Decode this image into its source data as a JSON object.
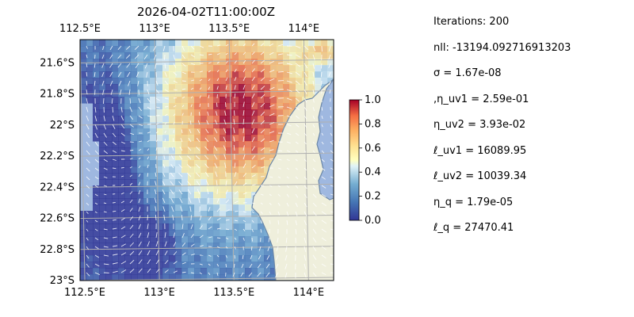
{
  "chart_data": {
    "type": "heatmap",
    "title": "2026-04-02T11:00:00Z",
    "x_ticks": [
      "112.5°E",
      "113°E",
      "113.5°E",
      "114°E"
    ],
    "y_ticks": [
      "21.6°S",
      "21.8°S",
      "22°S",
      "22.2°S",
      "22.4°S",
      "22.6°S",
      "22.8°S",
      "23°S"
    ],
    "lon_range": [
      112.5,
      114.2
    ],
    "lat_range": [
      -23.0,
      -21.45
    ],
    "grid": true,
    "overlay": "velocity quiver arrows (white)",
    "colorbar": {
      "ticks": [
        "0.0",
        "0.2",
        "0.4",
        "0.6",
        "0.8",
        "1.0"
      ],
      "range": [
        0,
        1
      ],
      "colormap": "RdYlBu_r"
    },
    "colors": {
      "ocean_mask": "#9fb8e0",
      "land": "#efefdc",
      "coastline": "#6a86a8"
    }
  },
  "stats": [
    "Iterations: 200",
    "nll: -13194.092716913203",
    "σ = 1.67e-08",
    ",η_uv1 = 2.59e-01",
    "η_uv2 = 3.93e-02",
    "ℓ_uv1 = 16089.95",
    "ℓ_uv2 = 10039.34",
    "η_q = 1.79e-05",
    "ℓ_q = 27470.41"
  ]
}
